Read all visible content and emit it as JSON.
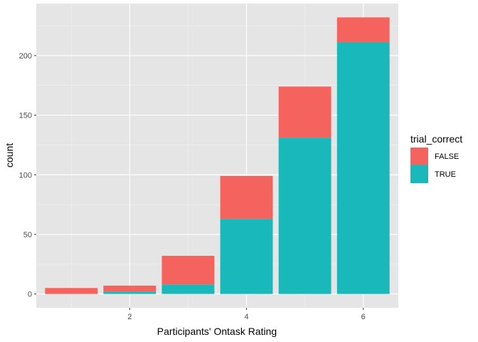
{
  "chart_data": {
    "type": "bar",
    "stacked": true,
    "x": [
      1,
      2,
      3,
      4,
      5,
      6
    ],
    "series": [
      {
        "name": "TRUE",
        "color": "#19b8bb",
        "values": [
          0,
          2,
          8,
          63,
          131,
          211
        ]
      },
      {
        "name": "FALSE",
        "color": "#f5635f",
        "values": [
          5,
          5,
          24,
          36,
          43,
          21
        ]
      }
    ],
    "xlabel": "Participants' Ontask Rating",
    "ylabel": "count",
    "xlim": [
      0.4,
      6.6
    ],
    "ylim": [
      -11.6,
      243.6
    ],
    "x_ticks": [
      2,
      4,
      6
    ],
    "y_ticks": [
      0,
      50,
      100,
      150,
      200
    ],
    "grid": true,
    "panel_background": "#e5e5e5",
    "grid_color": "#ffffff",
    "legend": {
      "title": "trial_correct",
      "position": "right",
      "entries": [
        {
          "label": "FALSE",
          "color": "#f5635f"
        },
        {
          "label": "TRUE",
          "color": "#19b8bb"
        }
      ]
    }
  }
}
